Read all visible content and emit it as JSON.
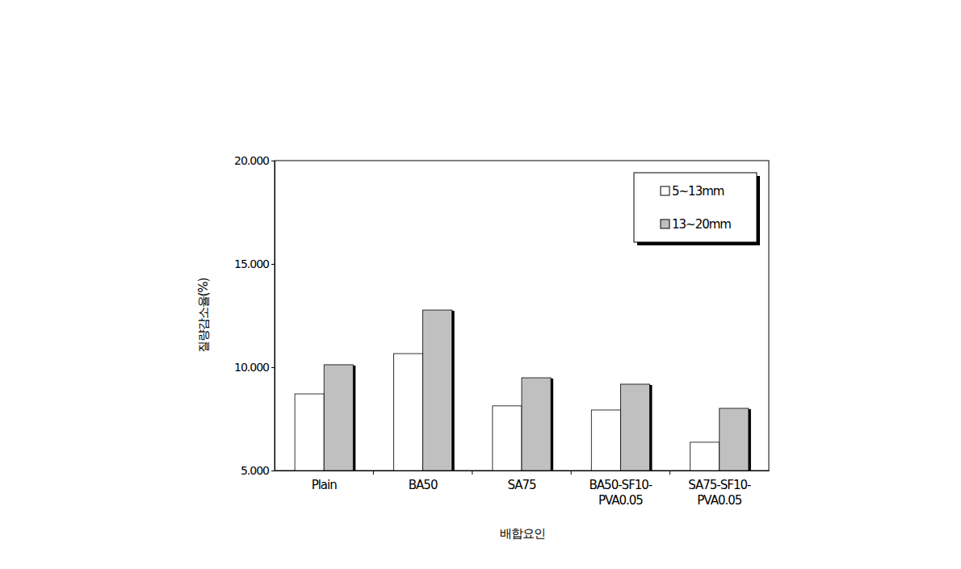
{
  "chart_data": {
    "type": "bar",
    "x_label": "배합요인",
    "y_label": "질량감소율(%)",
    "categories": [
      "Plain",
      "BA50",
      "SA75",
      "BA50-SF10-PVA0.05",
      "SA75-SF10-PVA0.05"
    ],
    "series": [
      {
        "name": "5~13mm",
        "color": "#ffffff",
        "values": [
          8.71,
          10.66,
          8.13,
          7.93,
          6.37
        ]
      },
      {
        "name": "13~20mm",
        "color": "#c0c0c0",
        "values": [
          10.12,
          12.77,
          9.49,
          9.18,
          8.01
        ]
      }
    ],
    "ylim": [
      5,
      20
    ],
    "yticks": [
      {
        "value": 5,
        "label": "5.000"
      },
      {
        "value": 10,
        "label": "10.000"
      },
      {
        "value": 15,
        "label": "15.000"
      },
      {
        "value": 20,
        "label": "20.000"
      }
    ],
    "grid": false,
    "legend": "top-right"
  }
}
